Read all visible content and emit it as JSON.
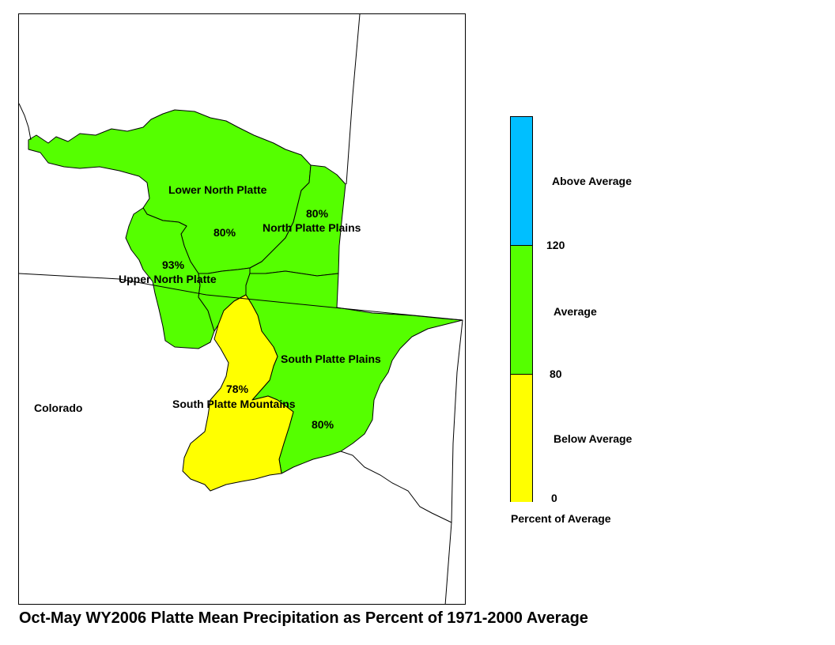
{
  "title": "Oct-May WY2006 Platte Mean Precipitation as Percent of 1971-2000 Average",
  "map": {
    "state_label": "Colorado",
    "basins": [
      {
        "name": "Lower North Platte",
        "percent": "80%",
        "category": "Average",
        "color": "#55ff00"
      },
      {
        "name": "North Platte Plains",
        "percent": "80%",
        "category": "Average",
        "color": "#55ff00"
      },
      {
        "name": "Upper North Platte",
        "percent": "93%",
        "category": "Average",
        "color": "#55ff00"
      },
      {
        "name": "South Platte Plains",
        "percent": "80%",
        "category": "Average",
        "color": "#55ff00"
      },
      {
        "name": "South Platte Mountains",
        "percent": "78%",
        "category": "Below Average",
        "color": "#ffff00"
      }
    ]
  },
  "legend": {
    "title": "Percent of Average",
    "categories": [
      {
        "label": "Above Average",
        "color": "#00bfff"
      },
      {
        "label": "Average",
        "color": "#55ff00"
      },
      {
        "label": "Below Average",
        "color": "#ffff00"
      }
    ],
    "breaks": [
      "120",
      "80",
      "0"
    ]
  }
}
